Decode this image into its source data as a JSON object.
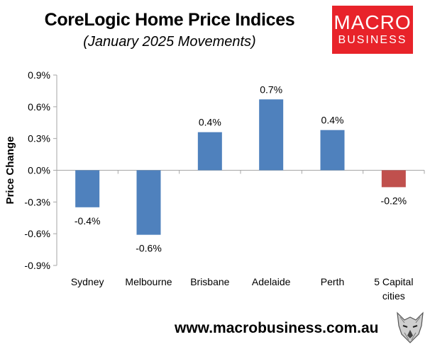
{
  "title": "CoreLogic Home Price Indices",
  "subtitle": "(January 2025 Movements)",
  "logo": {
    "line1": "MACRO",
    "line2": "BUSINESS"
  },
  "footer": "www.macrobusiness.com.au",
  "colors": {
    "positive": "#4f81bd",
    "negative_total": "#c0504d",
    "logo_bg": "#e8232a",
    "axis": "#a6a6a6"
  },
  "chart_data": {
    "type": "bar",
    "ylabel": "Price Change",
    "ylim": [
      -0.9,
      0.9
    ],
    "yticks": [
      0.9,
      0.6,
      0.3,
      0.0,
      -0.3,
      -0.6,
      -0.9
    ],
    "ytick_labels": [
      "0.9%",
      "0.6%",
      "0.3%",
      "0.0%",
      "-0.3%",
      "-0.6%",
      "-0.9%"
    ],
    "categories": [
      [
        "Sydney"
      ],
      [
        "Melbourne"
      ],
      [
        "Brisbane"
      ],
      [
        "Adelaide"
      ],
      [
        "Perth"
      ],
      [
        "5 Capital",
        "cities"
      ]
    ],
    "values": [
      -0.35,
      -0.61,
      0.36,
      0.67,
      0.38,
      -0.16
    ],
    "data_labels": [
      "-0.4%",
      "-0.6%",
      "0.4%",
      "0.7%",
      "0.4%",
      "-0.2%"
    ],
    "bar_colors": [
      "#4f81bd",
      "#4f81bd",
      "#4f81bd",
      "#4f81bd",
      "#4f81bd",
      "#c0504d"
    ],
    "grid": false,
    "legend": "none"
  }
}
